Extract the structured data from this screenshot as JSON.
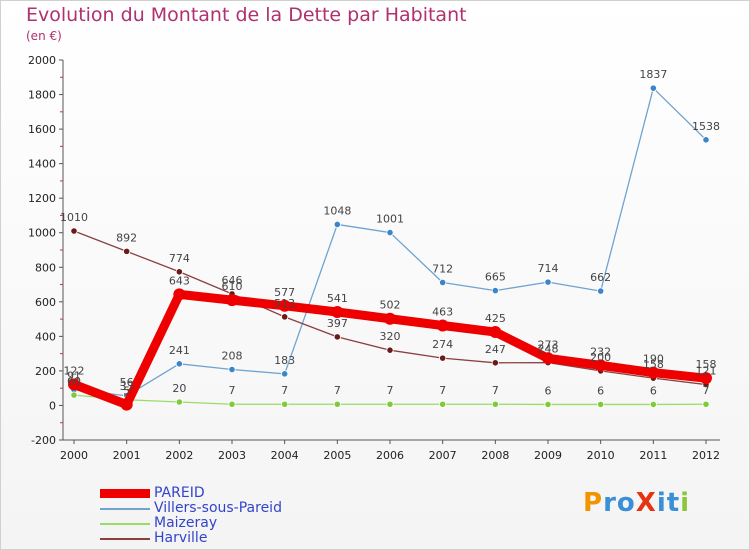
{
  "title": "Evolution du Montant de la Dette par Habitant",
  "subtitle": "(en €)",
  "logo": {
    "text": "ProXiti",
    "letters": [
      {
        "ch": "P",
        "color": "#f29400"
      },
      {
        "ch": "r",
        "color": "#3a8fd6"
      },
      {
        "ch": "o",
        "color": "#3a8fd6"
      },
      {
        "ch": "X",
        "color": "#e63312"
      },
      {
        "ch": "i",
        "color": "#3a8fd6"
      },
      {
        "ch": "t",
        "color": "#3a8fd6"
      },
      {
        "ch": "i",
        "color": "#8cc63f"
      }
    ]
  },
  "chart_data": {
    "type": "line",
    "title": "Evolution du Montant de la Dette par Habitant",
    "subtitle": "(en €)",
    "categories": [
      "2000",
      "2001",
      "2002",
      "2003",
      "2004",
      "2005",
      "2006",
      "2007",
      "2008",
      "2009",
      "2010",
      "2011",
      "2012"
    ],
    "ylim": [
      -200,
      2000
    ],
    "yticks": [
      -200,
      0,
      200,
      400,
      600,
      800,
      1000,
      1200,
      1400,
      1600,
      1800,
      2000
    ],
    "grid": false,
    "legend_position": "bottom-left",
    "series": [
      {
        "name": "PAREID",
        "color": "#ee0000",
        "point_color": "#ee0000",
        "thick": true,
        "values": [
          122,
          5,
          643,
          610,
          577,
          541,
          502,
          463,
          425,
          273,
          232,
          190,
          158
        ],
        "labels": [
          "122",
          "5",
          "643",
          "610",
          "577",
          "541",
          "502",
          "463",
          "425",
          "273",
          "232",
          "190",
          "158"
        ]
      },
      {
        "name": "Villers-sous-Pareid",
        "color": "#6fa3d0",
        "point_color": "#3a86c8",
        "thick": false,
        "values": [
          91,
          56,
          241,
          208,
          183,
          1048,
          1001,
          712,
          665,
          714,
          662,
          1837,
          1538
        ],
        "labels": [
          "91",
          "56",
          "241",
          "208",
          "183",
          "1048",
          "1001",
          "712",
          "665",
          "714",
          "662",
          "1837",
          "1538"
        ]
      },
      {
        "name": "Maizeray",
        "color": "#99dd66",
        "point_color": "#7ecb3a",
        "thick": false,
        "values": [
          60,
          33,
          20,
          7,
          7,
          7,
          7,
          7,
          7,
          6,
          6,
          6,
          7
        ],
        "labels": [
          "60",
          "33",
          "20",
          "7",
          "7",
          "7",
          "7",
          "7",
          "7",
          "6",
          "6",
          "6",
          "7"
        ]
      },
      {
        "name": "Harville",
        "color": "#8b4040",
        "point_color": "#6b1a1a",
        "thick": false,
        "values": [
          1010,
          892,
          774,
          646,
          513,
          397,
          320,
          274,
          247,
          248,
          200,
          158,
          121
        ],
        "labels": [
          "1010",
          "892",
          "774",
          "646",
          "513",
          "397",
          "320",
          "274",
          "247",
          "248",
          "200",
          "158",
          "121"
        ]
      }
    ]
  }
}
